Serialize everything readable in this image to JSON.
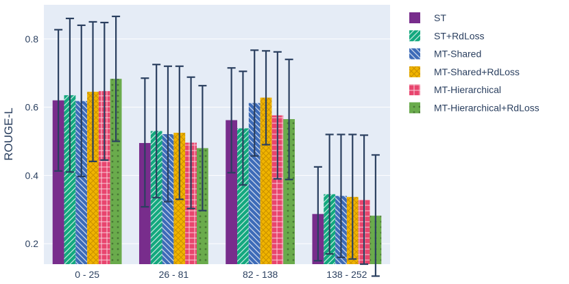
{
  "chart_data": {
    "type": "bar",
    "title": "",
    "xlabel": "",
    "ylabel": "ROUGE-L",
    "ylim": [
      0.14,
      0.9
    ],
    "yticks": [
      0.2,
      0.4,
      0.6,
      0.8
    ],
    "ytick_labels": [
      "0.2",
      "0.4",
      "0.6",
      "0.8"
    ],
    "grid": true,
    "legend_position": "right",
    "plot_background": "#e5ecf6",
    "categories": [
      "0 - 25",
      "26 - 81",
      "82 - 138",
      "138 - 252"
    ],
    "series": [
      {
        "name": "ST",
        "color": "#782d8c",
        "pattern": "none",
        "values": [
          0.62,
          0.495,
          0.562,
          0.287
        ],
        "error_low": [
          0.413,
          0.308,
          0.408,
          0.15
        ],
        "error_high": [
          0.827,
          0.685,
          0.715,
          0.425
        ]
      },
      {
        "name": "ST+RdLoss",
        "color": "#13a87e",
        "pattern": "slash",
        "values": [
          0.635,
          0.53,
          0.538,
          0.345
        ],
        "error_low": [
          0.41,
          0.335,
          0.372,
          0.17
        ],
        "error_high": [
          0.86,
          0.725,
          0.705,
          0.52
        ]
      },
      {
        "name": "MT-Shared",
        "color": "#3d6bb8",
        "pattern": "backslash",
        "values": [
          0.618,
          0.521,
          0.612,
          0.34
        ],
        "error_low": [
          0.397,
          0.323,
          0.457,
          0.16
        ],
        "error_high": [
          0.84,
          0.72,
          0.767,
          0.52
        ]
      },
      {
        "name": "MT-Shared+RdLoss",
        "color": "#f0b400",
        "pattern": "cross",
        "values": [
          0.645,
          0.525,
          0.628,
          0.337
        ],
        "error_low": [
          0.441,
          0.33,
          0.49,
          0.155
        ],
        "error_high": [
          0.85,
          0.72,
          0.765,
          0.52
        ]
      },
      {
        "name": "MT-Hierarchical",
        "color": "#e8456e",
        "pattern": "grid",
        "values": [
          0.647,
          0.496,
          0.576,
          0.329
        ],
        "error_low": [
          0.445,
          0.303,
          0.39,
          0.14
        ],
        "error_high": [
          0.848,
          0.688,
          0.762,
          0.518
        ]
      },
      {
        "name": "MT-Hierarchical+RdLoss",
        "color": "#6aab4c",
        "pattern": "dots",
        "values": [
          0.683,
          0.48,
          0.565,
          0.282
        ],
        "error_low": [
          0.5,
          0.297,
          0.388,
          0.105
        ],
        "error_high": [
          0.866,
          0.663,
          0.74,
          0.46
        ]
      }
    ]
  }
}
